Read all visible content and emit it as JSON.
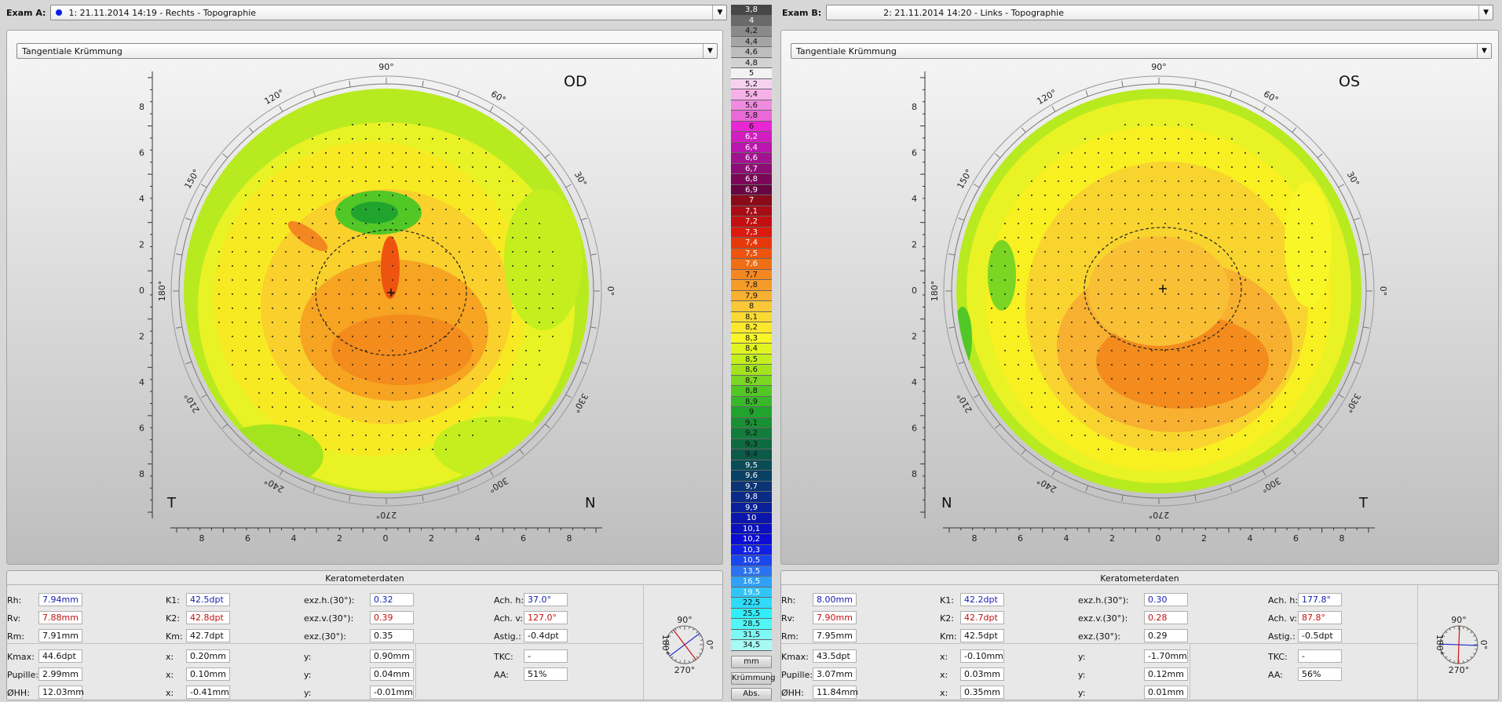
{
  "examA": {
    "label": "Exam A:",
    "value": "1: 21.11.2014 14:19 - Rechts - Topographie",
    "dot_color": "#0a1ee8"
  },
  "examB": {
    "label": "Exam B:",
    "value": "2: 21.11.2014 14:20 - Links - Topographie"
  },
  "mapA": {
    "type": "Tangentiale Krümmung",
    "eye": "OD",
    "left_corner": "T",
    "right_corner": "N"
  },
  "mapB": {
    "type": "Tangentiale Krümmung",
    "eye": "OS",
    "left_corner": "N",
    "right_corner": "T"
  },
  "axis": {
    "degrees": [
      "90°",
      "60°",
      "30°",
      "0°",
      "330°",
      "300°",
      "270°",
      "240°",
      "210°",
      "180°",
      "150°",
      "120°"
    ],
    "y_ticks": [
      "8",
      "6",
      "4",
      "2",
      "0",
      "2",
      "4",
      "6",
      "8"
    ],
    "x_ticks": [
      "8",
      "6",
      "4",
      "2",
      "0",
      "2",
      "4",
      "6",
      "8"
    ]
  },
  "scale": {
    "values": [
      "3,8",
      "4",
      "4,2",
      "4,4",
      "4,6",
      "4,8",
      "5",
      "5,2",
      "5,4",
      "5,6",
      "5,8",
      "6",
      "6,2",
      "6,4",
      "6,6",
      "6,7",
      "6,8",
      "6,9",
      "7",
      "7,1",
      "7,2",
      "7,3",
      "7,4",
      "7,5",
      "7,6",
      "7,7",
      "7,8",
      "7,9",
      "8",
      "8,1",
      "8,2",
      "8,3",
      "8,4",
      "8,5",
      "8,6",
      "8,7",
      "8,8",
      "8,9",
      "9",
      "9,1",
      "9,2",
      "9,3",
      "9,4",
      "9,5",
      "9,6",
      "9,7",
      "9,8",
      "9,9",
      "10",
      "10,1",
      "10,2",
      "10,3",
      "10,5",
      "13,5",
      "16,5",
      "19,5",
      "22,5",
      "25,5",
      "28,5",
      "31,5",
      "34,5"
    ],
    "colors": [
      "#474747",
      "#6a6a6a",
      "#8a8a8a",
      "#a5a5a5",
      "#bdbdbd",
      "#d2d2d2",
      "#f2f2f2",
      "#f7d2f0",
      "#f6b0ea",
      "#f08be0",
      "#ea68d8",
      "#e826d3",
      "#d21ec0",
      "#bb16ad",
      "#a2138f",
      "#8d0d73",
      "#7a0758",
      "#680542",
      "#8a0a1a",
      "#a80c16",
      "#c40f10",
      "#dc1a0c",
      "#e8380a",
      "#ee5410",
      "#f06e14",
      "#f38720",
      "#f59c28",
      "#f7b030",
      "#f9c836",
      "#fbda34",
      "#fbe82c",
      "#f8f626",
      "#e0f520",
      "#c4ee1e",
      "#a4e41e",
      "#7ad622",
      "#52c826",
      "#38b82a",
      "#20a42e",
      "#189034",
      "#127c3a",
      "#0e6a40",
      "#0c5a48",
      "#0a4c56",
      "#0a4064",
      "#0a3474",
      "#0a2a86",
      "#0a2098",
      "#0a16ac",
      "#0a10c0",
      "#0c0cd4",
      "#1020e4",
      "#1a46ee",
      "#2a74f4",
      "#30a0f8",
      "#30c4fa",
      "#2edcfa",
      "#30eef8",
      "#52f6f6",
      "#7ef8f4",
      "#a6faf4"
    ],
    "buttons": [
      "mm",
      "Krümmung",
      "Abs."
    ]
  },
  "keratoA": {
    "title": "Keratometerdaten",
    "rh_l": "Rh:",
    "rh": "7.94mm",
    "rv_l": "Rv:",
    "rv": "7.88mm",
    "rm_l": "Rm:",
    "rm": "7.91mm",
    "k1_l": "K1:",
    "k1": "42.5dpt",
    "k2_l": "K2:",
    "k2": "42.8dpt",
    "km_l": "Km:",
    "km": "42.7dpt",
    "exh_l": "exz.h.(30°):",
    "exh": "0.32",
    "exv_l": "exz.v.(30°):",
    "exv": "0.39",
    "ex_l": "exz.(30°):",
    "ex": "0.35",
    "ach_l": "Ach. h:",
    "ach": "37.0°",
    "acv_l": "Ach. v:",
    "acv": "127.0°",
    "ast_l": "Astig.:",
    "ast": "-0.4dpt",
    "kmax_l": "Kmax:",
    "kmax": "44.6dpt",
    "pup_l": "Pupille:",
    "pup": "2.99mm",
    "ohh_l": "ØHH:",
    "ohh": "12.03mm",
    "x1_l": "x:",
    "x1": "0.20mm",
    "x2_l": "x:",
    "x2": "0.10mm",
    "x3_l": "x:",
    "x3": "-0.41mm",
    "y1_l": "y:",
    "y1": "0.90mm",
    "y2_l": "y:",
    "y2": "0.04mm",
    "y3_l": "y:",
    "y3": "-0.01mm",
    "tkc_l": "TKC:",
    "tkc": "-",
    "aa_l": "AA:",
    "aa": "51%"
  },
  "keratoB": {
    "title": "Keratometerdaten",
    "rh_l": "Rh:",
    "rh": "8.00mm",
    "rv_l": "Rv:",
    "rv": "7.90mm",
    "rm_l": "Rm:",
    "rm": "7.95mm",
    "k1_l": "K1:",
    "k1": "42.2dpt",
    "k2_l": "K2:",
    "k2": "42.7dpt",
    "km_l": "Km:",
    "km": "42.5dpt",
    "exh_l": "exz.h.(30°):",
    "exh": "0.30",
    "exv_l": "exz.v.(30°):",
    "exv": "0.28",
    "ex_l": "exz.(30°):",
    "ex": "0.29",
    "ach_l": "Ach. h:",
    "ach": "177.8°",
    "acv_l": "Ach. v:",
    "acv": "87.8°",
    "ast_l": "Astig.:",
    "ast": "-0.5dpt",
    "kmax_l": "Kmax:",
    "kmax": "43.5dpt",
    "pup_l": "Pupille:",
    "pup": "3.07mm",
    "ohh_l": "ØHH:",
    "ohh": "11.84mm",
    "x1_l": "x:",
    "x1": "-0.10mm",
    "x2_l": "x:",
    "x2": "0.03mm",
    "x3_l": "x:",
    "x3": "0.35mm",
    "y1_l": "y:",
    "y1": "-1.70mm",
    "y2_l": "y:",
    "y2": "0.12mm",
    "y3_l": "y:",
    "y3": "0.01mm",
    "tkc_l": "TKC:",
    "tkc": "-",
    "aa_l": "AA:",
    "aa": "56%"
  },
  "axis_dial": {
    "top": "90°",
    "left": "180°",
    "right": "0°",
    "bottom": "270°"
  },
  "axis_angles": {
    "A": [
      37,
      127
    ],
    "B": [
      177.8,
      87.8
    ]
  }
}
